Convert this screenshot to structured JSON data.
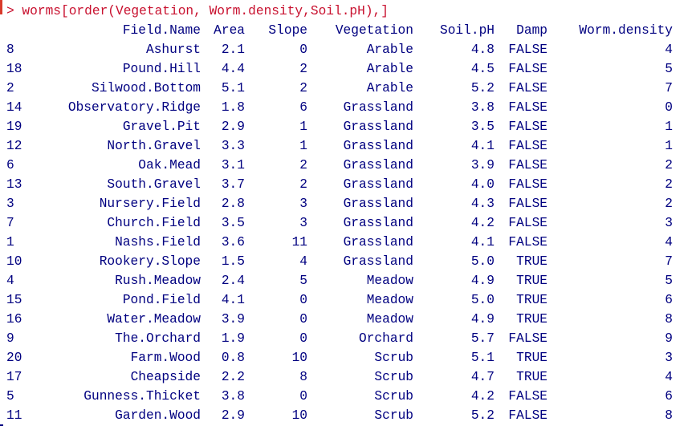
{
  "console": {
    "command": "> worms[order(Vegetation, Worm.density,Soil.pH),]",
    "headers": [
      "Field.Name",
      "Area",
      "Slope",
      "Vegetation",
      "Soil.pH",
      "Damp",
      "Worm.density"
    ],
    "rows": [
      {
        "id": "8",
        "name": "Ashurst",
        "area": "2.1",
        "slope": "0",
        "veg": "Arable",
        "ph": "4.8",
        "damp": "FALSE",
        "wd": "4"
      },
      {
        "id": "18",
        "name": "Pound.Hill",
        "area": "4.4",
        "slope": "2",
        "veg": "Arable",
        "ph": "4.5",
        "damp": "FALSE",
        "wd": "5"
      },
      {
        "id": "2",
        "name": "Silwood.Bottom",
        "area": "5.1",
        "slope": "2",
        "veg": "Arable",
        "ph": "5.2",
        "damp": "FALSE",
        "wd": "7"
      },
      {
        "id": "14",
        "name": "Observatory.Ridge",
        "area": "1.8",
        "slope": "6",
        "veg": "Grassland",
        "ph": "3.8",
        "damp": "FALSE",
        "wd": "0"
      },
      {
        "id": "19",
        "name": "Gravel.Pit",
        "area": "2.9",
        "slope": "1",
        "veg": "Grassland",
        "ph": "3.5",
        "damp": "FALSE",
        "wd": "1"
      },
      {
        "id": "12",
        "name": "North.Gravel",
        "area": "3.3",
        "slope": "1",
        "veg": "Grassland",
        "ph": "4.1",
        "damp": "FALSE",
        "wd": "1"
      },
      {
        "id": "6",
        "name": "Oak.Mead",
        "area": "3.1",
        "slope": "2",
        "veg": "Grassland",
        "ph": "3.9",
        "damp": "FALSE",
        "wd": "2"
      },
      {
        "id": "13",
        "name": "South.Gravel",
        "area": "3.7",
        "slope": "2",
        "veg": "Grassland",
        "ph": "4.0",
        "damp": "FALSE",
        "wd": "2"
      },
      {
        "id": "3",
        "name": "Nursery.Field",
        "area": "2.8",
        "slope": "3",
        "veg": "Grassland",
        "ph": "4.3",
        "damp": "FALSE",
        "wd": "2"
      },
      {
        "id": "7",
        "name": "Church.Field",
        "area": "3.5",
        "slope": "3",
        "veg": "Grassland",
        "ph": "4.2",
        "damp": "FALSE",
        "wd": "3"
      },
      {
        "id": "1",
        "name": "Nashs.Field",
        "area": "3.6",
        "slope": "11",
        "veg": "Grassland",
        "ph": "4.1",
        "damp": "FALSE",
        "wd": "4"
      },
      {
        "id": "10",
        "name": "Rookery.Slope",
        "area": "1.5",
        "slope": "4",
        "veg": "Grassland",
        "ph": "5.0",
        "damp": "TRUE",
        "wd": "7"
      },
      {
        "id": "4",
        "name": "Rush.Meadow",
        "area": "2.4",
        "slope": "5",
        "veg": "Meadow",
        "ph": "4.9",
        "damp": "TRUE",
        "wd": "5"
      },
      {
        "id": "15",
        "name": "Pond.Field",
        "area": "4.1",
        "slope": "0",
        "veg": "Meadow",
        "ph": "5.0",
        "damp": "TRUE",
        "wd": "6"
      },
      {
        "id": "16",
        "name": "Water.Meadow",
        "area": "3.9",
        "slope": "0",
        "veg": "Meadow",
        "ph": "4.9",
        "damp": "TRUE",
        "wd": "8"
      },
      {
        "id": "9",
        "name": "The.Orchard",
        "area": "1.9",
        "slope": "0",
        "veg": "Orchard",
        "ph": "5.7",
        "damp": "FALSE",
        "wd": "9"
      },
      {
        "id": "20",
        "name": "Farm.Wood",
        "area": "0.8",
        "slope": "10",
        "veg": "Scrub",
        "ph": "5.1",
        "damp": "TRUE",
        "wd": "3"
      },
      {
        "id": "17",
        "name": "Cheapside",
        "area": "2.2",
        "slope": "8",
        "veg": "Scrub",
        "ph": "4.7",
        "damp": "TRUE",
        "wd": "4"
      },
      {
        "id": "5",
        "name": "Gunness.Thicket",
        "area": "3.8",
        "slope": "0",
        "veg": "Scrub",
        "ph": "4.2",
        "damp": "FALSE",
        "wd": "6"
      },
      {
        "id": "11",
        "name": "Garden.Wood",
        "area": "2.9",
        "slope": "10",
        "veg": "Scrub",
        "ph": "5.2",
        "damp": "FALSE",
        "wd": "8"
      }
    ]
  },
  "colors": {
    "output_text": "#000080",
    "command_text": "#c8102e",
    "background": "#ffffff"
  }
}
